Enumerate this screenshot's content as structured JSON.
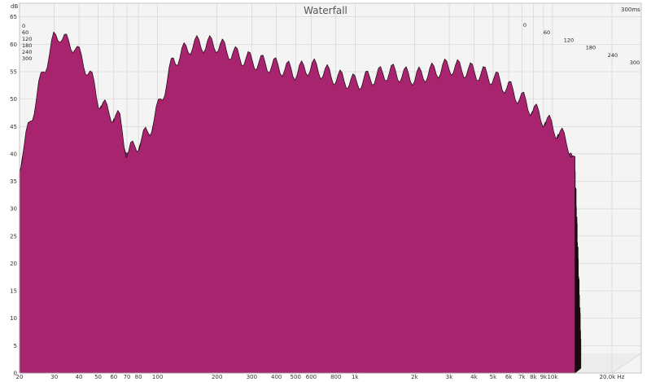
{
  "chart_data": {
    "type": "area",
    "title": "Waterfall",
    "xlabel": "Hz",
    "ylabel": "dB",
    "zlabel": "300ms",
    "x_scale": "log",
    "xlim": [
      20,
      20000
    ],
    "ylim": [
      0,
      66
    ],
    "grid": true,
    "colors": {
      "fill": "#a8246f",
      "line": "#1a0a12",
      "grid": "#cfcfcf",
      "panel": "#f4f4f4",
      "back_wall": "#ececec"
    },
    "x_ticks": [
      {
        "value": 20,
        "label": "20"
      },
      {
        "value": 30,
        "label": "30"
      },
      {
        "value": 40,
        "label": "40"
      },
      {
        "value": 50,
        "label": "50"
      },
      {
        "value": 60,
        "label": "60"
      },
      {
        "value": 70,
        "label": "70"
      },
      {
        "value": 80,
        "label": "80"
      },
      {
        "value": 100,
        "label": "100"
      },
      {
        "value": 200,
        "label": "200"
      },
      {
        "value": 300,
        "label": "300"
      },
      {
        "value": 400,
        "label": "400"
      },
      {
        "value": 500,
        "label": "500"
      },
      {
        "value": 600,
        "label": "600"
      },
      {
        "value": 800,
        "label": "800"
      },
      {
        "value": 1000,
        "label": "1k"
      },
      {
        "value": 2000,
        "label": "2k"
      },
      {
        "value": 3000,
        "label": "3k"
      },
      {
        "value": 4000,
        "label": "4k"
      },
      {
        "value": 5000,
        "label": "5k"
      },
      {
        "value": 6000,
        "label": "6k"
      },
      {
        "value": 7000,
        "label": "7k"
      },
      {
        "value": 8000,
        "label": "8k"
      },
      {
        "value": 9000,
        "label": "9k"
      },
      {
        "value": 10000,
        "label": "10k"
      },
      {
        "value": 20000,
        "label": "20.0k Hz"
      }
    ],
    "y_ticks": [
      {
        "value": 0,
        "label": "0"
      },
      {
        "value": 5,
        "label": "5"
      },
      {
        "value": 10,
        "label": "10"
      },
      {
        "value": 15,
        "label": "15"
      },
      {
        "value": 20,
        "label": "20"
      },
      {
        "value": 25,
        "label": "25"
      },
      {
        "value": 30,
        "label": "30"
      },
      {
        "value": 35,
        "label": "35"
      },
      {
        "value": 40,
        "label": "40"
      },
      {
        "value": 45,
        "label": "45"
      },
      {
        "value": 50,
        "label": "50"
      },
      {
        "value": 55,
        "label": "55"
      },
      {
        "value": 60,
        "label": "60"
      },
      {
        "value": 65,
        "label": "65"
      }
    ],
    "z_ticks": [
      {
        "value": 0,
        "label": "0"
      },
      {
        "value": 60,
        "label": "60"
      },
      {
        "value": 120,
        "label": "120"
      },
      {
        "value": 180,
        "label": "180"
      },
      {
        "value": 240,
        "label": "240"
      },
      {
        "value": 300,
        "label": "300"
      }
    ],
    "envelope": {
      "x": [
        20,
        22,
        25,
        28,
        30,
        32,
        35,
        38,
        40,
        45,
        50,
        55,
        60,
        65,
        70,
        80,
        90,
        100,
        120,
        150,
        200,
        250,
        300,
        400,
        500,
        600,
        800,
        1000,
        1500,
        2000,
        3000,
        4000,
        5000,
        6000,
        7000,
        8000,
        10000,
        12000,
        13000
      ],
      "y": [
        38,
        44,
        52,
        58,
        61,
        62,
        60,
        60,
        58,
        55,
        50,
        48,
        47,
        46,
        40,
        42,
        44,
        48,
        57,
        60,
        60,
        58,
        57,
        56,
        55,
        56,
        54,
        53,
        55,
        54,
        56,
        55,
        54,
        52,
        50,
        48,
        45,
        42,
        38
      ]
    },
    "decay_levels": [
      1.0,
      0.96,
      0.92,
      0.88,
      0.84,
      0.8,
      0.76,
      0.72,
      0.68,
      0.64,
      0.6,
      0.56,
      0.52,
      0.48,
      0.44,
      0.4,
      0.36,
      0.32,
      0.28,
      0.24,
      0.2,
      0.16
    ]
  }
}
